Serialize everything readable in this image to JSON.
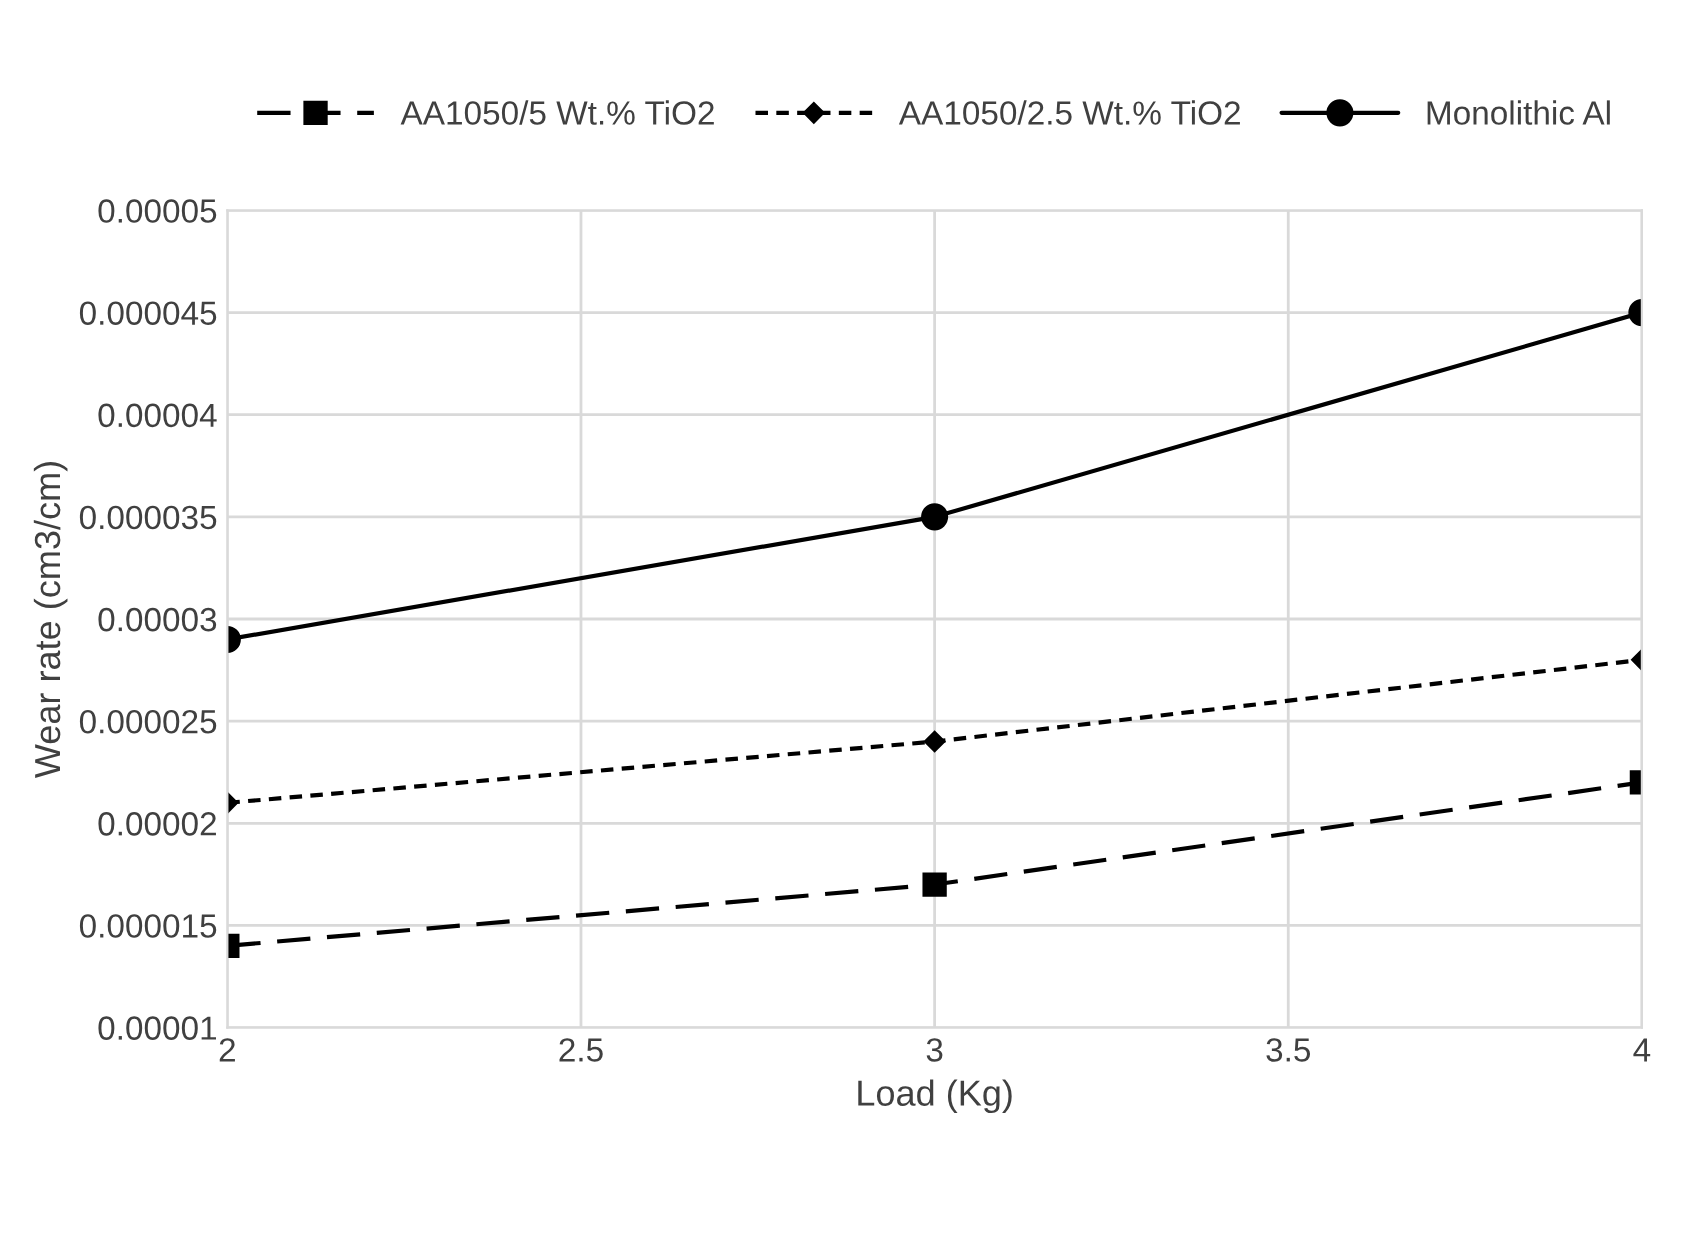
{
  "chart_data": {
    "type": "line",
    "xlabel": "Load (Kg)",
    "ylabel": "Wear rate (cm3/cm)",
    "x": [
      2,
      3,
      4
    ],
    "series": [
      {
        "name": "AA1050/5 Wt.% TiO2",
        "color": "#000000",
        "marker": "square",
        "line_style": "dashed",
        "values": [
          1.4e-05,
          1.7e-05,
          2.2e-05
        ]
      },
      {
        "name": "AA1050/2.5 Wt.% TiO2",
        "color": "#000000",
        "marker": "diamond",
        "line_style": "dotted",
        "values": [
          2.1e-05,
          2.4e-05,
          2.8e-05
        ]
      },
      {
        "name": "Monolithic Al",
        "color": "#000000",
        "marker": "circle",
        "line_style": "solid",
        "values": [
          2.9e-05,
          3.5e-05,
          4.5e-05
        ]
      }
    ],
    "xlim": [
      2,
      4
    ],
    "xticks": [
      2,
      2.5,
      3,
      3.5,
      4
    ],
    "ylim": [
      1e-05,
      5e-05
    ],
    "yticks": [
      {
        "value": 1e-05,
        "label": "0.00001"
      },
      {
        "value": 1.5e-05,
        "label": "0.000015"
      },
      {
        "value": 2e-05,
        "label": "0.00002"
      },
      {
        "value": 2.5e-05,
        "label": "0.000025"
      },
      {
        "value": 3e-05,
        "label": "0.00003"
      },
      {
        "value": 3.5e-05,
        "label": "0.000035"
      },
      {
        "value": 4e-05,
        "label": "0.00004"
      },
      {
        "value": 4.5e-05,
        "label": "0.000045"
      },
      {
        "value": 5e-05,
        "label": "0.00005"
      }
    ],
    "grid": true,
    "legend": "top"
  }
}
